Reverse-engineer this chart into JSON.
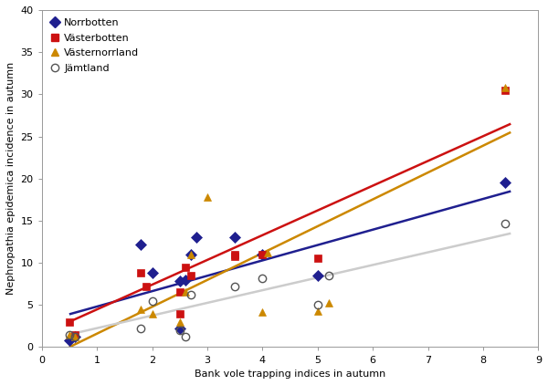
{
  "norrbotten": {
    "x": [
      0.5,
      0.6,
      1.8,
      2.0,
      2.5,
      2.5,
      2.6,
      2.7,
      2.8,
      3.5,
      4.0,
      5.0,
      8.4
    ],
    "y": [
      0.8,
      1.2,
      12.2,
      8.8,
      7.8,
      2.2,
      8.0,
      11.0,
      13.0,
      13.0,
      11.0,
      8.5,
      19.5
    ],
    "color": "#1f1f8f",
    "marker": "D",
    "markersize": 6,
    "label": "Norrbotten"
  },
  "vasterbotten": {
    "x": [
      0.5,
      0.6,
      1.8,
      1.9,
      2.5,
      2.5,
      2.6,
      2.7,
      3.5,
      3.5,
      4.0,
      5.0,
      8.4
    ],
    "y": [
      3.0,
      1.5,
      8.8,
      7.2,
      6.5,
      4.0,
      9.5,
      8.5,
      11.0,
      10.8,
      11.0,
      10.5,
      30.5
    ],
    "color": "#cc1111",
    "marker": "s",
    "markersize": 6,
    "label": "Västerbotten"
  },
  "vasternorrland": {
    "x": [
      0.5,
      0.6,
      1.8,
      2.0,
      2.5,
      2.6,
      2.7,
      3.0,
      4.0,
      4.1,
      5.0,
      5.2,
      8.4
    ],
    "y": [
      1.5,
      1.2,
      4.5,
      4.0,
      3.0,
      6.5,
      11.0,
      17.8,
      4.2,
      11.2,
      4.3,
      5.2,
      30.8
    ],
    "color": "#cc8800",
    "marker": "^",
    "markersize": 6,
    "label": "Västernorrland"
  },
  "jamtland": {
    "x": [
      0.5,
      0.6,
      1.8,
      2.0,
      2.5,
      2.6,
      2.7,
      3.5,
      4.0,
      5.0,
      5.2,
      8.4
    ],
    "y": [
      1.5,
      1.2,
      2.2,
      5.5,
      2.0,
      1.2,
      6.2,
      7.2,
      8.2,
      5.0,
      8.5,
      14.7
    ],
    "color": "#555555",
    "marker": "o",
    "markersize": 6,
    "label": "Jämtland"
  },
  "regression_lines": {
    "norrbotten": {
      "x": [
        0.5,
        8.5
      ],
      "y": [
        3.9,
        18.5
      ],
      "color": "#1f1f8f",
      "linewidth": 1.8
    },
    "vasterbotten": {
      "x": [
        0.5,
        8.5
      ],
      "y": [
        3.0,
        26.5
      ],
      "color": "#cc1111",
      "linewidth": 1.8
    },
    "vasternorrland": {
      "x": [
        0.5,
        8.5
      ],
      "y": [
        0.0,
        25.5
      ],
      "color": "#cc8800",
      "linewidth": 1.8
    },
    "jamtland": {
      "x": [
        0.5,
        8.5
      ],
      "y": [
        1.5,
        13.5
      ],
      "color": "#cccccc",
      "linewidth": 1.8
    }
  },
  "xlabel": "Bank vole trapping indices in autumn",
  "ylabel": "Nephropathia epidemica incidence in autumn",
  "xlim": [
    0,
    9
  ],
  "ylim": [
    0,
    40
  ],
  "xticks": [
    0,
    1,
    2,
    3,
    4,
    5,
    6,
    7,
    8,
    9
  ],
  "yticks": [
    0,
    5,
    10,
    15,
    20,
    25,
    30,
    35,
    40
  ],
  "background_color": "#ffffff",
  "legend_fontsize": 8,
  "axis_fontsize": 8,
  "tick_fontsize": 8
}
